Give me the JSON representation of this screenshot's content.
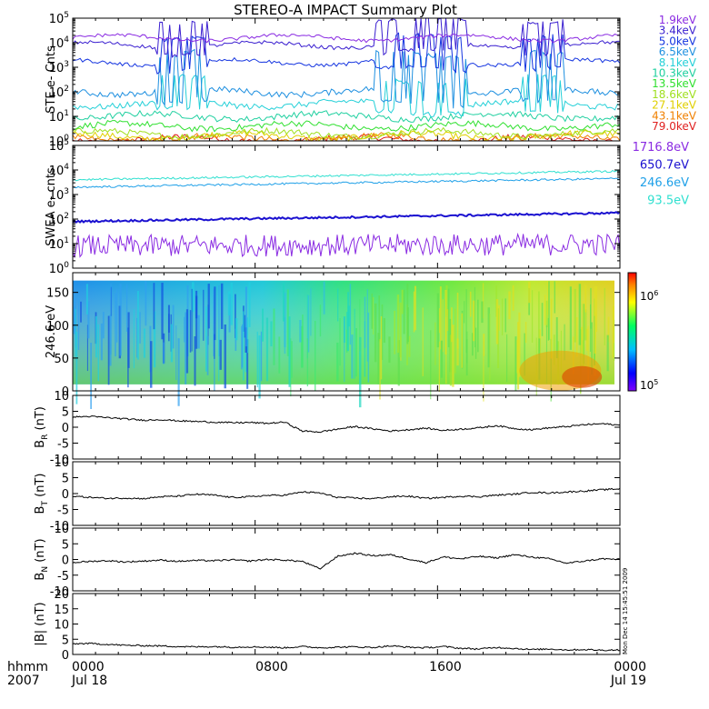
{
  "title": "STEREO-A IMPACT Summary Plot",
  "colors": {
    "ste": [
      "#8a2be2",
      "#3a1fd0",
      "#1535e0",
      "#1f90e0",
      "#25d0d8",
      "#20d0a0",
      "#30e030",
      "#a0e020",
      "#e0d000",
      "#f08000",
      "#e02020"
    ],
    "swea": [
      "#8a2be2",
      "#1a10d0",
      "#1fa0e8",
      "#30e0d0"
    ],
    "trace": "#000000"
  },
  "chart_data": [
    {
      "type": "line",
      "ylabel": "STE e- Cnts",
      "yscale": "log",
      "yticks": [
        "10^0",
        "10^1",
        "10^2",
        "10^3",
        "10^4",
        "10^5"
      ],
      "legend": [
        "1.9keV",
        "3.4keV",
        "5.0keV",
        "6.5keV",
        "8.1keV",
        "10.3keV",
        "13.5keV",
        "18.6keV",
        "27.1keV",
        "43.1keV",
        "79.0keV"
      ],
      "series_levels_log10": [
        4.2,
        3.9,
        3.2,
        2.0,
        1.5,
        1.0,
        0.6,
        0.3,
        0.2,
        0.1,
        0.05
      ]
    },
    {
      "type": "line",
      "ylabel": "SWEA e- cnts",
      "yscale": "log",
      "yticks": [
        "10^0",
        "10^1",
        "10^2",
        "10^3",
        "10^4",
        "10^5"
      ],
      "legend": [
        "1716.8eV",
        "650.7eV",
        "246.6eV",
        "93.5eV"
      ],
      "series_levels_log10": [
        0.9,
        1.9,
        3.3,
        3.6
      ]
    },
    {
      "type": "heatmap",
      "ylabel": "246.6 eV",
      "yticks": [
        "0",
        "50",
        "100",
        "150"
      ],
      "ylim": [
        0,
        180
      ],
      "colorbar_ticks": [
        "10^5",
        "10^6"
      ]
    },
    {
      "type": "line",
      "ylabel_main": "B",
      "ylabel_sub": "R",
      "ylabel_unit": " (nT)",
      "yticks": [
        "-10",
        "-5",
        "0",
        "5",
        "10"
      ],
      "ylim": [
        -10,
        10
      ],
      "values": [
        3.2,
        3.4,
        3.0,
        2.6,
        2.2,
        2.4,
        2.0,
        1.8,
        1.6,
        1.4,
        1.5,
        1.2,
        1.6,
        -1.2,
        -1.5,
        -0.6,
        0.2,
        -0.5,
        -1.2,
        -0.8,
        -0.3,
        -1.0,
        -0.6,
        -0.2,
        0.5,
        -0.4,
        -0.8,
        -0.2,
        0.2,
        0.8,
        1.1,
        0.6
      ]
    },
    {
      "type": "line",
      "ylabel_main": "B",
      "ylabel_sub": "T",
      "ylabel_unit": " (nT)",
      "yticks": [
        "-10",
        "-5",
        "0",
        "5",
        "10"
      ],
      "ylim": [
        -10,
        10
      ],
      "values": [
        -0.8,
        -1.2,
        -1.5,
        -1.4,
        -1.6,
        -1.0,
        -0.8,
        -0.2,
        -0.5,
        -1.2,
        -1.0,
        -0.6,
        -0.5,
        0.5,
        0.2,
        -1.2,
        -1.4,
        -1.6,
        -1.0,
        -0.8,
        -1.5,
        -1.2,
        -0.8,
        -1.0,
        -0.5,
        -0.2,
        0.4,
        0.2,
        0.5,
        0.8,
        1.2,
        1.5
      ]
    },
    {
      "type": "line",
      "ylabel_main": "B",
      "ylabel_sub": "N",
      "ylabel_unit": " (nT)",
      "yticks": [
        "-10",
        "-5",
        "0",
        "5",
        "10"
      ],
      "ylim": [
        -10,
        10
      ],
      "values": [
        -1.0,
        -0.6,
        -0.4,
        -0.8,
        -0.5,
        -0.2,
        -0.6,
        -0.3,
        -0.4,
        -0.1,
        -0.5,
        0.0,
        -0.2,
        -0.6,
        -3.0,
        1.0,
        2.0,
        1.2,
        1.5,
        0.2,
        -1.0,
        0.8,
        0.2,
        1.0,
        0.5,
        1.5,
        0.8,
        0.2,
        -1.2,
        -0.5,
        0.2,
        0.0
      ]
    },
    {
      "type": "line",
      "ylabel": "|B| (nT)",
      "yticks": [
        "0",
        "5",
        "10",
        "15",
        "20"
      ],
      "ylim": [
        0,
        20
      ],
      "values": [
        3.5,
        3.6,
        3.3,
        3.0,
        2.9,
        2.8,
        2.6,
        2.5,
        2.6,
        2.4,
        2.5,
        2.4,
        2.2,
        2.6,
        2.2,
        2.4,
        2.5,
        2.3,
        2.8,
        2.4,
        2.2,
        2.6,
        2.0,
        1.8,
        2.3,
        2.0,
        1.6,
        1.8,
        1.5,
        1.6,
        1.4,
        1.5
      ]
    }
  ],
  "xaxis": {
    "corner_top": "hhmm",
    "corner_bottom": "2007",
    "ticks": [
      {
        "label": "0000",
        "sub": "Jul 18"
      },
      {
        "label": "0800",
        "sub": ""
      },
      {
        "label": "1600",
        "sub": ""
      },
      {
        "label": "0000",
        "sub": "Jul 19"
      }
    ]
  },
  "side_stamp": "Mon Dec 14 15:45:51 2009"
}
